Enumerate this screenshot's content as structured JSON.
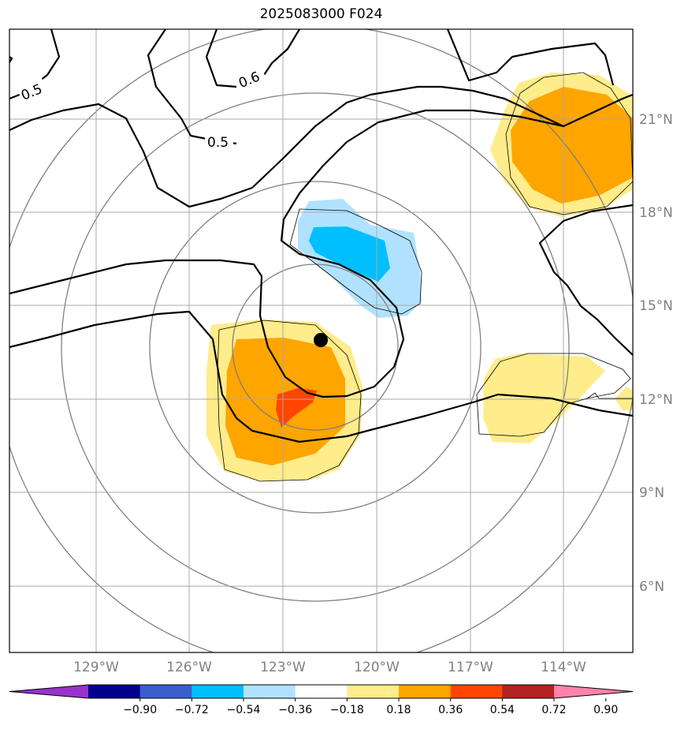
{
  "title": "2025083000 F024",
  "map": {
    "lon_labels": [
      "129°W",
      "126°W",
      "123°W",
      "120°W",
      "117°W",
      "114°W"
    ],
    "lat_labels": [
      "21°N",
      "18°N",
      "15°N",
      "12°N",
      "9°N",
      "6°N"
    ],
    "contour_labels": [
      "0.5",
      "0.6",
      "0.5"
    ],
    "center_marker": "storm-center"
  },
  "colorbar": {
    "ticks": [
      "−0.90",
      "−0.72",
      "−0.54",
      "−0.36",
      "−0.18",
      "0.18",
      "0.36",
      "0.54",
      "0.72",
      "0.90"
    ],
    "colors": [
      "#9932cc",
      "#00008b",
      "#3a5fcd",
      "#00bfff",
      "#b0e2ff",
      "#ffffff",
      "#ffec8b",
      "#ffa500",
      "#ff4500",
      "#b22222",
      "#ff83aa"
    ]
  },
  "fill_colors": {
    "light_yellow": "#ffec8b",
    "orange": "#ffa500",
    "red_orange": "#ff4500",
    "light_blue": "#b0e2ff",
    "deep_sky_blue": "#00bfff"
  }
}
